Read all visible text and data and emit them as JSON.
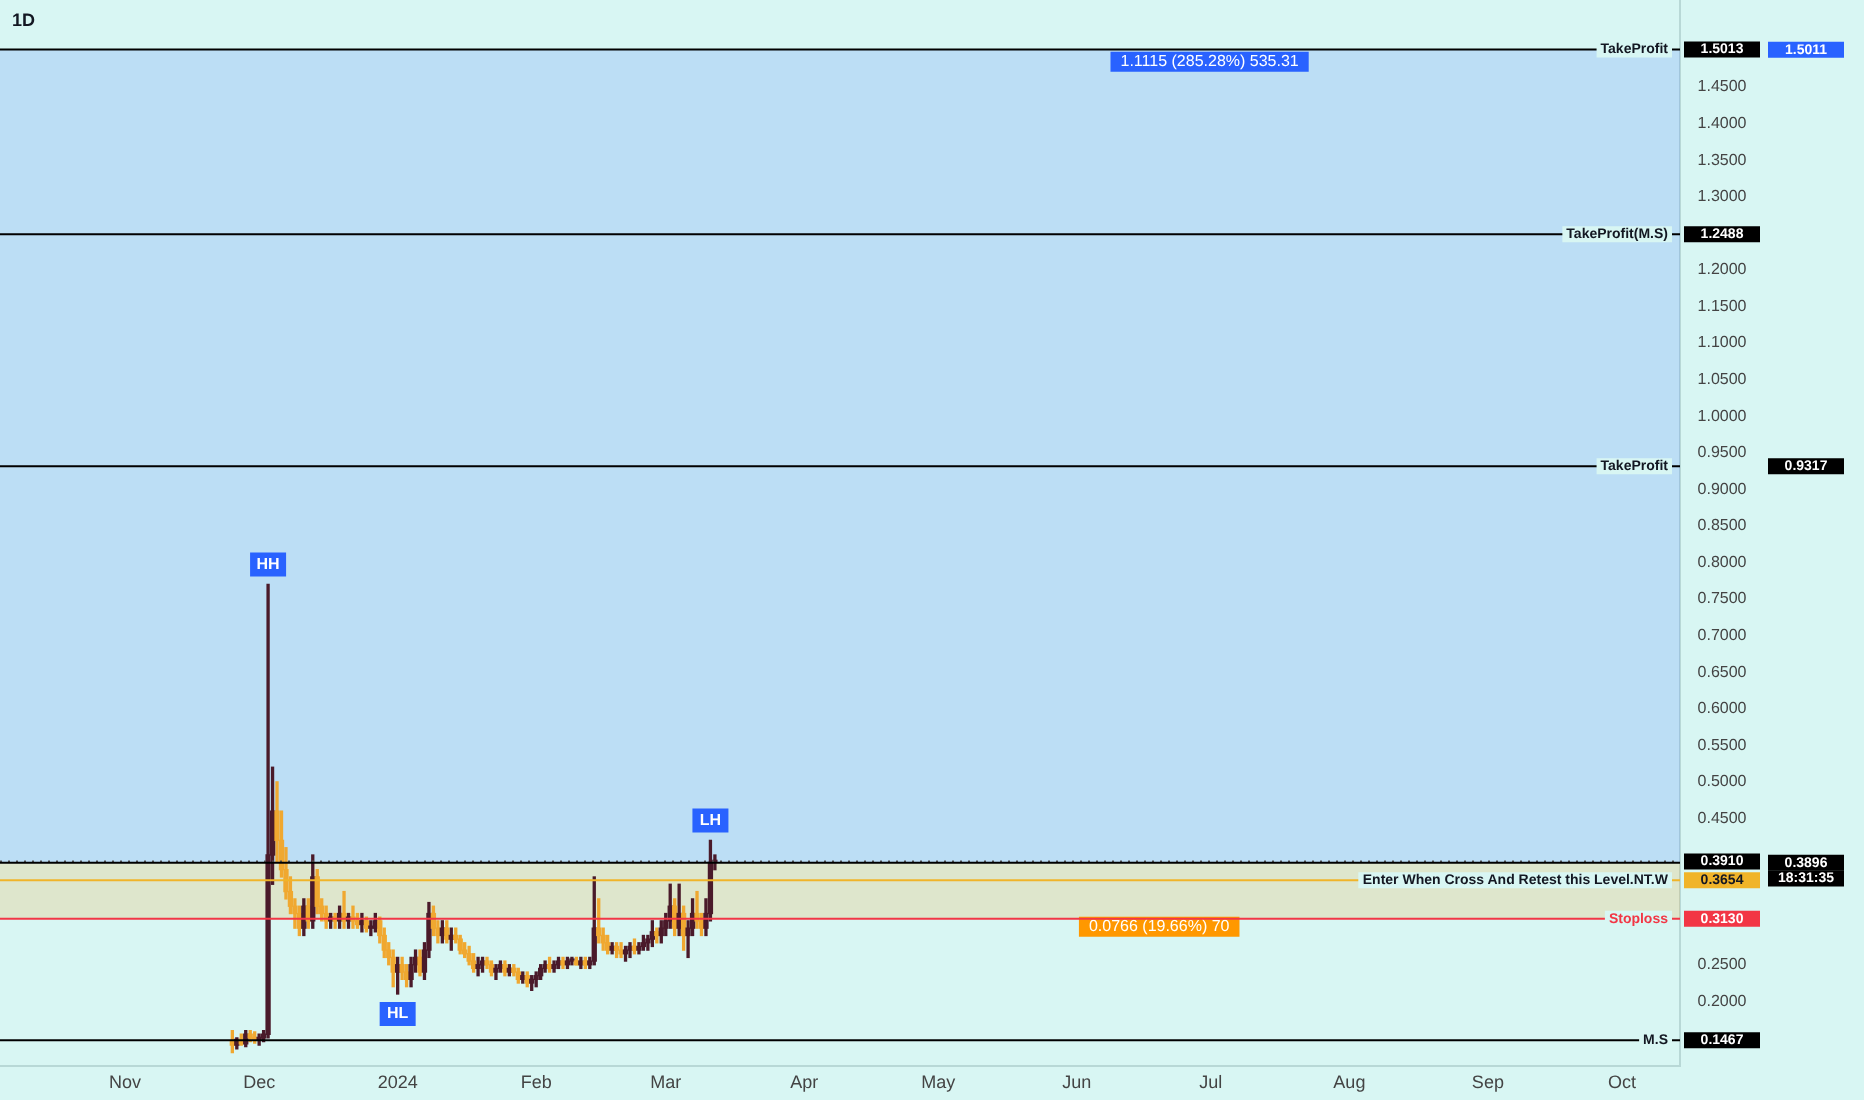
{
  "chart_data": {
    "type": "candlestick",
    "title": "1D",
    "colors": [
      "#f0a830",
      "#4a1a2a",
      "#f0a830",
      "#4a1a2a",
      "#f0a830",
      "#f0a830",
      "#4a1a2a",
      "#4a1a2a",
      "#4a1a2a",
      "#4a1a2a",
      "#f0a830",
      "#f0a830",
      "#f0a830",
      "#f0a830",
      "#f0a830",
      "#f0a830",
      "#4a1a2a",
      "#f0a830",
      "#4a1a2a",
      "#f0a830",
      "#f0a830",
      "#f0a830",
      "#4a1a2a",
      "#f0a830",
      "#4a1a2a",
      "#f0a830",
      "#4a1a2a",
      "#f0a830",
      "#f0a830",
      "#4a1a2a",
      "#f0a830",
      "#4a1a2a",
      "#4a1a2a",
      "#f0a830",
      "#f0a830",
      "#f0a830",
      "#f0a830",
      "#4a1a2a",
      "#f0a830",
      "#f0a830",
      "#4a1a2a",
      "#4a1a2a",
      "#f0a830",
      "#4a1a2a",
      "#4a1a2a",
      "#f0a830",
      "#f0a830",
      "#4a1a2a",
      "#f0a830",
      "#4a1a2a",
      "#f0a830",
      "#f0a830",
      "#f0a830",
      "#f0a830",
      "#f0a830",
      "#4a1a2a",
      "#4a1a2a",
      "#f0a830",
      "#f0a830",
      "#4a1a2a",
      "#4a1a2a",
      "#f0a830",
      "#4a1a2a",
      "#f0a830",
      "#f0a830",
      "#4a1a2a",
      "#f0a830",
      "#4a1a2a",
      "#4a1a2a",
      "#4a1a2a",
      "#4a1a2a",
      "#f0a830",
      "#4a1a2a",
      "#4a1a2a",
      "#f0a830",
      "#4a1a2a",
      "#4a1a2a",
      "#f0a830",
      "#4a1a2a",
      "#f0a830",
      "#4a1a2a",
      "#4a1a2a",
      "#f0a830",
      "#f0a830",
      "#f0a830",
      "#4a1a2a",
      "#f0a830",
      "#f0a830",
      "#4a1a2a",
      "#4a1a2a",
      "#f0a830",
      "#4a1a2a",
      "#4a1a2a",
      "#4a1a2a",
      "#4a1a2a",
      "#f0a830",
      "#4a1a2a",
      "#4a1a2a",
      "#4a1a2a",
      "#f0a830",
      "#4a1a2a",
      "#f0a830",
      "#4a1a2a",
      "#4a1a2a",
      "#f0a830",
      "#f0a830",
      "#4a1a2a",
      "#4a1a2a",
      "#4a1a2a"
    ],
    "x": [
      "2023-11-25",
      "2023-11-26",
      "2023-11-27",
      "2023-11-28",
      "2023-11-29",
      "2023-11-30",
      "2023-12-01",
      "2023-12-02",
      "2023-12-03",
      "2023-12-04",
      "2023-12-05",
      "2023-12-06",
      "2023-12-07",
      "2023-12-08",
      "2023-12-09",
      "2023-12-10",
      "2023-12-11",
      "2023-12-12",
      "2023-12-13",
      "2023-12-14",
      "2023-12-15",
      "2023-12-16",
      "2023-12-17",
      "2023-12-18",
      "2023-12-19",
      "2023-12-20",
      "2023-12-21",
      "2023-12-22",
      "2023-12-23",
      "2023-12-24",
      "2023-12-25",
      "2023-12-26",
      "2023-12-27",
      "2023-12-28",
      "2023-12-29",
      "2023-12-30",
      "2023-12-31",
      "2024-01-01",
      "2024-01-02",
      "2024-01-03",
      "2024-01-04",
      "2024-01-05",
      "2024-01-06",
      "2024-01-07",
      "2024-01-08",
      "2024-01-09",
      "2024-01-10",
      "2024-01-11",
      "2024-01-12",
      "2024-01-13",
      "2024-01-14",
      "2024-01-15",
      "2024-01-16",
      "2024-01-17",
      "2024-01-18",
      "2024-01-19",
      "2024-01-20",
      "2024-01-21",
      "2024-01-22",
      "2024-01-23",
      "2024-01-24",
      "2024-01-25",
      "2024-01-26",
      "2024-01-27",
      "2024-01-28",
      "2024-01-29",
      "2024-01-30",
      "2024-01-31",
      "2024-02-01",
      "2024-02-02",
      "2024-02-03",
      "2024-02-04",
      "2024-02-05",
      "2024-02-06",
      "2024-02-07",
      "2024-02-08",
      "2024-02-09",
      "2024-02-10",
      "2024-02-11",
      "2024-02-12",
      "2024-02-13",
      "2024-02-14",
      "2024-02-15",
      "2024-02-16",
      "2024-02-17",
      "2024-02-18",
      "2024-02-19",
      "2024-02-20",
      "2024-02-21",
      "2024-02-22",
      "2024-02-23",
      "2024-02-24",
      "2024-02-25",
      "2024-02-26",
      "2024-02-27",
      "2024-02-28",
      "2024-02-29",
      "2024-03-01",
      "2024-03-02",
      "2024-03-03",
      "2024-03-04",
      "2024-03-05",
      "2024-03-06",
      "2024-03-07",
      "2024-03-08",
      "2024-03-09",
      "2024-03-10",
      "2024-03-11",
      "2024-03-12"
    ],
    "ohlc": [
      [
        0.145,
        0.16,
        0.13,
        0.14
      ],
      [
        0.14,
        0.15,
        0.135,
        0.148
      ],
      [
        0.148,
        0.155,
        0.14,
        0.142
      ],
      [
        0.142,
        0.16,
        0.138,
        0.155
      ],
      [
        0.155,
        0.16,
        0.145,
        0.15
      ],
      [
        0.15,
        0.158,
        0.143,
        0.148
      ],
      [
        0.148,
        0.155,
        0.14,
        0.15
      ],
      [
        0.15,
        0.16,
        0.145,
        0.155
      ],
      [
        0.155,
        0.77,
        0.15,
        0.4
      ],
      [
        0.4,
        0.52,
        0.36,
        0.46
      ],
      [
        0.46,
        0.5,
        0.39,
        0.42
      ],
      [
        0.42,
        0.46,
        0.37,
        0.38
      ],
      [
        0.38,
        0.41,
        0.34,
        0.35
      ],
      [
        0.35,
        0.37,
        0.32,
        0.33
      ],
      [
        0.33,
        0.34,
        0.3,
        0.32
      ],
      [
        0.32,
        0.33,
        0.29,
        0.3
      ],
      [
        0.3,
        0.34,
        0.29,
        0.33
      ],
      [
        0.33,
        0.34,
        0.3,
        0.31
      ],
      [
        0.31,
        0.4,
        0.3,
        0.37
      ],
      [
        0.37,
        0.38,
        0.32,
        0.33
      ],
      [
        0.33,
        0.34,
        0.31,
        0.32
      ],
      [
        0.32,
        0.33,
        0.3,
        0.31
      ],
      [
        0.31,
        0.32,
        0.3,
        0.315
      ],
      [
        0.315,
        0.32,
        0.3,
        0.31
      ],
      [
        0.31,
        0.33,
        0.3,
        0.32
      ],
      [
        0.32,
        0.35,
        0.3,
        0.31
      ],
      [
        0.31,
        0.32,
        0.3,
        0.315
      ],
      [
        0.315,
        0.33,
        0.3,
        0.31
      ],
      [
        0.31,
        0.32,
        0.3,
        0.305
      ],
      [
        0.305,
        0.32,
        0.295,
        0.31
      ],
      [
        0.31,
        0.315,
        0.295,
        0.3
      ],
      [
        0.3,
        0.31,
        0.29,
        0.3
      ],
      [
        0.3,
        0.32,
        0.295,
        0.31
      ],
      [
        0.31,
        0.315,
        0.28,
        0.29
      ],
      [
        0.29,
        0.3,
        0.26,
        0.27
      ],
      [
        0.27,
        0.28,
        0.25,
        0.26
      ],
      [
        0.26,
        0.27,
        0.22,
        0.24
      ],
      [
        0.24,
        0.26,
        0.21,
        0.25
      ],
      [
        0.25,
        0.26,
        0.23,
        0.24
      ],
      [
        0.24,
        0.25,
        0.22,
        0.23
      ],
      [
        0.23,
        0.26,
        0.22,
        0.25
      ],
      [
        0.25,
        0.27,
        0.24,
        0.26
      ],
      [
        0.26,
        0.27,
        0.235,
        0.24
      ],
      [
        0.24,
        0.28,
        0.23,
        0.27
      ],
      [
        0.27,
        0.335,
        0.26,
        0.32
      ],
      [
        0.32,
        0.33,
        0.29,
        0.3
      ],
      [
        0.3,
        0.31,
        0.28,
        0.29
      ],
      [
        0.29,
        0.31,
        0.28,
        0.3
      ],
      [
        0.3,
        0.31,
        0.28,
        0.285
      ],
      [
        0.285,
        0.3,
        0.27,
        0.29
      ],
      [
        0.29,
        0.3,
        0.28,
        0.285
      ],
      [
        0.285,
        0.29,
        0.265,
        0.27
      ],
      [
        0.27,
        0.28,
        0.26,
        0.265
      ],
      [
        0.265,
        0.275,
        0.25,
        0.255
      ],
      [
        0.255,
        0.265,
        0.24,
        0.245
      ],
      [
        0.245,
        0.26,
        0.235,
        0.25
      ],
      [
        0.25,
        0.26,
        0.24,
        0.255
      ],
      [
        0.255,
        0.26,
        0.245,
        0.25
      ],
      [
        0.25,
        0.255,
        0.235,
        0.24
      ],
      [
        0.24,
        0.25,
        0.23,
        0.245
      ],
      [
        0.245,
        0.255,
        0.24,
        0.25
      ],
      [
        0.25,
        0.255,
        0.235,
        0.24
      ],
      [
        0.24,
        0.25,
        0.235,
        0.245
      ],
      [
        0.245,
        0.25,
        0.235,
        0.24
      ],
      [
        0.24,
        0.245,
        0.225,
        0.23
      ],
      [
        0.23,
        0.24,
        0.225,
        0.235
      ],
      [
        0.235,
        0.24,
        0.22,
        0.225
      ],
      [
        0.225,
        0.235,
        0.215,
        0.23
      ],
      [
        0.23,
        0.24,
        0.22,
        0.235
      ],
      [
        0.235,
        0.25,
        0.23,
        0.245
      ],
      [
        0.245,
        0.255,
        0.24,
        0.25
      ],
      [
        0.25,
        0.26,
        0.24,
        0.245
      ],
      [
        0.245,
        0.255,
        0.24,
        0.25
      ],
      [
        0.25,
        0.26,
        0.245,
        0.255
      ],
      [
        0.255,
        0.26,
        0.245,
        0.25
      ],
      [
        0.25,
        0.26,
        0.245,
        0.255
      ],
      [
        0.255,
        0.26,
        0.25,
        0.255
      ],
      [
        0.255,
        0.26,
        0.25,
        0.25
      ],
      [
        0.25,
        0.26,
        0.245,
        0.255
      ],
      [
        0.255,
        0.26,
        0.245,
        0.25
      ],
      [
        0.25,
        0.26,
        0.245,
        0.255
      ],
      [
        0.255,
        0.37,
        0.25,
        0.3
      ],
      [
        0.3,
        0.34,
        0.28,
        0.29
      ],
      [
        0.29,
        0.3,
        0.27,
        0.28
      ],
      [
        0.28,
        0.29,
        0.265,
        0.27
      ],
      [
        0.27,
        0.28,
        0.265,
        0.275
      ],
      [
        0.275,
        0.28,
        0.26,
        0.27
      ],
      [
        0.27,
        0.28,
        0.26,
        0.265
      ],
      [
        0.265,
        0.275,
        0.255,
        0.27
      ],
      [
        0.27,
        0.28,
        0.26,
        0.275
      ],
      [
        0.275,
        0.285,
        0.265,
        0.27
      ],
      [
        0.27,
        0.28,
        0.265,
        0.275
      ],
      [
        0.275,
        0.29,
        0.27,
        0.28
      ],
      [
        0.28,
        0.29,
        0.27,
        0.285
      ],
      [
        0.285,
        0.31,
        0.275,
        0.295
      ],
      [
        0.295,
        0.3,
        0.28,
        0.29
      ],
      [
        0.29,
        0.31,
        0.28,
        0.3
      ],
      [
        0.3,
        0.32,
        0.29,
        0.31
      ],
      [
        0.31,
        0.36,
        0.3,
        0.33
      ],
      [
        0.33,
        0.34,
        0.29,
        0.3
      ],
      [
        0.3,
        0.36,
        0.29,
        0.32
      ],
      [
        0.32,
        0.33,
        0.27,
        0.29
      ],
      [
        0.29,
        0.31,
        0.26,
        0.3
      ],
      [
        0.3,
        0.34,
        0.29,
        0.32
      ],
      [
        0.32,
        0.35,
        0.3,
        0.31
      ],
      [
        0.31,
        0.32,
        0.29,
        0.3
      ],
      [
        0.3,
        0.34,
        0.29,
        0.32
      ],
      [
        0.32,
        0.42,
        0.31,
        0.39
      ],
      [
        0.39,
        0.4,
        0.38,
        0.391
      ]
    ],
    "xlim": [
      "2023-10-04",
      "2024-10-14"
    ],
    "xticks": [
      {
        "value": "2023-11-01",
        "label": "Nov"
      },
      {
        "value": "2023-12-01",
        "label": "Dec"
      },
      {
        "value": "2024-01-01",
        "label": "2024"
      },
      {
        "value": "2024-02-01",
        "label": "Feb"
      },
      {
        "value": "2024-03-01",
        "label": "Mar"
      },
      {
        "value": "2024-04-01",
        "label": "Apr"
      },
      {
        "value": "2024-05-01",
        "label": "May"
      },
      {
        "value": "2024-06-01",
        "label": "Jun"
      },
      {
        "value": "2024-07-01",
        "label": "Jul"
      },
      {
        "value": "2024-08-01",
        "label": "Aug"
      },
      {
        "value": "2024-09-01",
        "label": "Sep"
      },
      {
        "value": "2024-10-01",
        "label": "Oct"
      }
    ],
    "ylim": [
      0.111,
      1.569
    ],
    "y2lim": [
      0.111,
      1.569
    ],
    "y2ticks": [
      {
        "value": 0.3896,
        "label": "0.3896"
      },
      {
        "value": 0.9317,
        "label": "0.9317"
      },
      {
        "value": 1.5011,
        "label": "1.5011"
      }
    ],
    "yticks": [
      {
        "value": 0.1467,
        "label": "0.1467"
      },
      {
        "value": 0.313,
        "label": "0.3130"
      },
      {
        "value": 0.3654,
        "label": "0.3654"
      },
      {
        "value": 0.391,
        "label": "0.3910"
      },
      {
        "value": 1.2488,
        "label": "1.2488"
      },
      {
        "value": 1.5013,
        "label": "1.5013"
      },
      {
        "value": 0.2,
        "label": "0.2000"
      },
      {
        "value": 0.25,
        "label": "0.2500"
      },
      {
        "value": 0.45,
        "label": "0.4500"
      },
      {
        "value": 0.5,
        "label": "0.5000"
      },
      {
        "value": 0.55,
        "label": "0.5500"
      },
      {
        "value": 0.6,
        "label": "0.6000"
      },
      {
        "value": 0.65,
        "label": "0.6500"
      },
      {
        "value": 0.7,
        "label": "0.7000"
      },
      {
        "value": 0.75,
        "label": "0.7500"
      },
      {
        "value": 0.8,
        "label": "0.8000"
      },
      {
        "value": 0.85,
        "label": "0.8500"
      },
      {
        "value": 0.9,
        "label": "0.9000"
      },
      {
        "value": 0.95,
        "label": "0.9500"
      },
      {
        "value": 1.0,
        "label": "1.0000"
      },
      {
        "value": 1.05,
        "label": "1.0500"
      },
      {
        "value": 1.1,
        "label": "1.1000"
      },
      {
        "value": 1.15,
        "label": "1.1500"
      },
      {
        "value": 1.2,
        "label": "1.2000"
      },
      {
        "value": 1.3,
        "label": "1.3000"
      },
      {
        "value": 1.35,
        "label": "1.3500"
      },
      {
        "value": 1.4,
        "label": "1.4000"
      },
      {
        "value": 1.45,
        "label": "1.4500"
      }
    ],
    "grid": false,
    "legend": false,
    "bands": [
      {
        "axis": "y",
        "from": 0.3896,
        "to": 1.5011,
        "label": "1.1115 (285.28%) 535.31",
        "color": "#2962ff"
      },
      {
        "axis": "y",
        "from": 0.313,
        "to": 0.3896,
        "label": "0.0766 (19.66%) 70",
        "color": "#ff9800"
      }
    ],
    "ref_lines": [
      {
        "axis": "y",
        "value": 1.5013,
        "label": "TakeProfit",
        "color": "#000000"
      },
      {
        "axis": "y",
        "value": 1.2488,
        "label": "TakeProfit(M.S)",
        "color": "#000000"
      },
      {
        "axis": "y",
        "value": 0.9317,
        "label": "TakeProfit",
        "color": "#000000"
      },
      {
        "axis": "y",
        "value": 0.391,
        "label": null,
        "color": "#555555",
        "line_style": "dotted"
      },
      {
        "axis": "y",
        "value": 0.3896,
        "label": null,
        "color": "#000000"
      },
      {
        "axis": "y",
        "value": 0.3654,
        "label": "Enter When Cross And Retest this Level.NT.W",
        "color": "#f0b429"
      },
      {
        "axis": "y",
        "value": 0.313,
        "label": "Stoploss",
        "color": "#f23645"
      },
      {
        "axis": "y",
        "value": 0.1467,
        "label": "M.S",
        "color": "#000000"
      }
    ],
    "annotations": [
      {
        "text": "HH",
        "x": "2023-12-03",
        "y": 0.77
      },
      {
        "text": "HL",
        "x": "2024-01-01",
        "y": 0.21
      },
      {
        "text": "LH",
        "x": "2024-03-11",
        "y": 0.42
      },
      "18:31:35"
    ]
  }
}
